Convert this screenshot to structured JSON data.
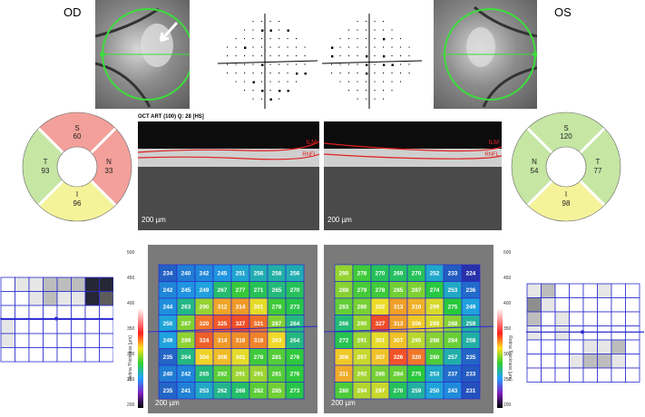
{
  "labels": {
    "od": "OD",
    "os": "OS"
  },
  "oct": {
    "title": "OCT ART (100) Q: 28 [HS]",
    "scale": "200 µm",
    "ilm": "ILM",
    "rnfl": "RNFL"
  },
  "od_sectors": {
    "S": "60",
    "N": "33",
    "I": "96",
    "T": "93"
  },
  "os_sectors": {
    "S": "120",
    "N": "54",
    "I": "98",
    "T": "77"
  },
  "colors": {
    "sector_red": "#f4a09a",
    "sector_green": "#c6e6a4",
    "sector_yellow": "#f5f39a",
    "green_ring": "#3ddc3d",
    "grid_line": "#2a2ad0"
  },
  "thickness_map": {
    "scale_label": "200 µm",
    "colorbar_title": "Retina Thickness [µm]",
    "colorbar_ticks": [
      "500",
      "450",
      "400",
      "350",
      "300",
      "250",
      "200"
    ],
    "od_values": [
      [
        "234",
        "240",
        "242",
        "245",
        "251",
        "256",
        "258",
        "256"
      ],
      [
        "242",
        "245",
        "249",
        "267",
        "277",
        "271",
        "265",
        "270"
      ],
      [
        "244",
        "263",
        "290",
        "312",
        "314",
        "301",
        "278",
        "273"
      ],
      [
        "250",
        "287",
        "320",
        "325",
        "327",
        "321",
        "287",
        "264"
      ],
      [
        "249",
        "289",
        "324",
        "314",
        "316",
        "318",
        "303",
        "264"
      ],
      [
        "235",
        "264",
        "304",
        "308",
        "301",
        "278",
        "281",
        "276"
      ],
      [
        "240",
        "242",
        "265",
        "282",
        "291",
        "291",
        "281",
        "276"
      ],
      [
        "235",
        "241",
        "253",
        "262",
        "268",
        "282",
        "285",
        "273"
      ]
    ],
    "os_values": [
      [
        "290",
        "278",
        "270",
        "269",
        "270",
        "252",
        "233",
        "224"
      ],
      [
        "288",
        "279",
        "278",
        "285",
        "287",
        "274",
        "253",
        "236"
      ],
      [
        "283",
        "286",
        "302",
        "313",
        "310",
        "299",
        "275",
        "249"
      ],
      [
        "266",
        "290",
        "327",
        "313",
        "306",
        "299",
        "288",
        "259"
      ],
      [
        "272",
        "291",
        "301",
        "307",
        "295",
        "288",
        "284",
        "258"
      ],
      [
        "306",
        "297",
        "307",
        "326",
        "320",
        "280",
        "257",
        "235"
      ],
      [
        "311",
        "292",
        "286",
        "284",
        "275",
        "253",
        "237",
        "233"
      ],
      [
        "280",
        "294",
        "297",
        "270",
        "259",
        "250",
        "243",
        "231"
      ]
    ]
  },
  "field_od": [
    [
      0,
      1,
      1,
      2,
      2,
      2,
      5,
      5
    ],
    [
      0,
      0,
      1,
      2,
      1,
      1,
      5,
      4
    ],
    [
      0,
      0,
      0,
      0,
      0,
      0,
      0,
      0
    ],
    [
      1,
      0,
      0,
      0,
      0,
      0,
      0,
      0
    ],
    [
      1,
      0,
      0,
      0,
      0,
      0,
      0,
      0
    ],
    [
      0,
      0,
      0,
      0,
      0,
      0,
      0,
      0
    ]
  ],
  "field_os": [
    [
      1,
      2,
      0,
      0,
      0,
      1,
      0,
      0
    ],
    [
      3,
      1,
      0,
      0,
      0,
      0,
      0,
      0
    ],
    [
      2,
      0,
      1,
      0,
      0,
      0,
      0,
      0
    ],
    [
      1,
      0,
      1,
      0,
      0,
      0,
      0,
      0
    ],
    [
      0,
      0,
      0,
      0,
      1,
      1,
      2,
      0
    ],
    [
      0,
      0,
      0,
      1,
      2,
      2,
      1,
      0
    ],
    [
      0,
      0,
      0,
      0,
      0,
      0,
      0,
      0
    ]
  ]
}
